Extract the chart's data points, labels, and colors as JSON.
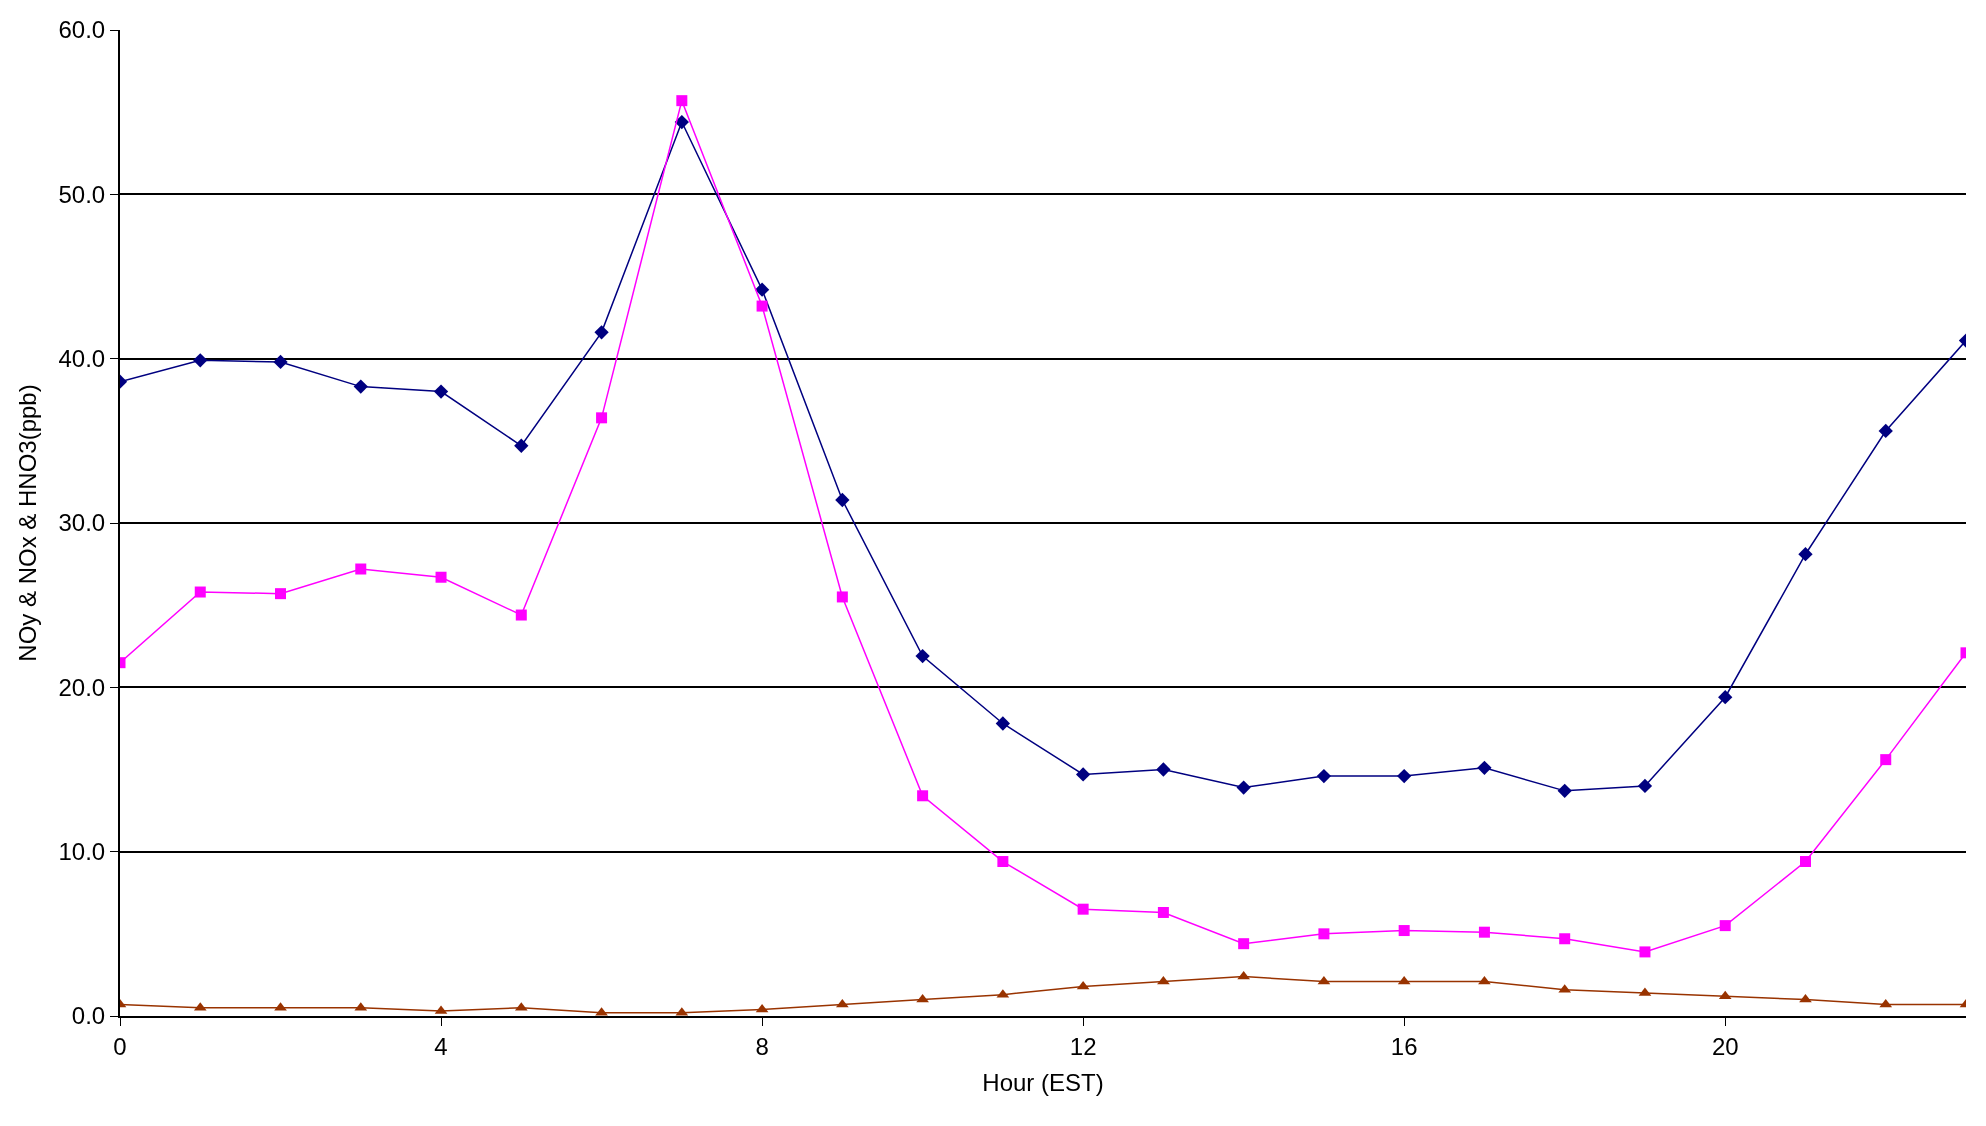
{
  "chart_data": {
    "type": "line",
    "xlabel": "Hour (EST)",
    "ylabel": "NOy & NOx & HNO3(ppb)",
    "x": [
      0,
      1,
      2,
      3,
      4,
      5,
      6,
      7,
      8,
      9,
      10,
      11,
      12,
      13,
      14,
      15,
      16,
      17,
      18,
      19,
      20,
      21,
      22,
      23
    ],
    "series": [
      {
        "color": "#000080",
        "marker": "diamond",
        "values": [
          38.6,
          39.9,
          39.8,
          38.3,
          38.0,
          34.7,
          41.6,
          54.4,
          44.2,
          31.4,
          21.9,
          17.8,
          14.7,
          15.0,
          13.9,
          14.6,
          14.6,
          15.1,
          13.7,
          14.0,
          19.4,
          28.1,
          35.6,
          41.1
        ]
      },
      {
        "color": "#ff00ff",
        "marker": "square",
        "values": [
          21.5,
          25.8,
          25.7,
          27.2,
          26.7,
          24.4,
          36.4,
          55.7,
          43.2,
          25.5,
          13.4,
          9.4,
          6.5,
          6.3,
          4.4,
          5.0,
          5.2,
          5.1,
          4.7,
          3.9,
          5.5,
          9.4,
          15.6,
          22.1
        ]
      },
      {
        "color": "#993300",
        "marker": "triangle",
        "values": [
          0.7,
          0.5,
          0.5,
          0.5,
          0.3,
          0.5,
          0.2,
          0.2,
          0.4,
          0.7,
          1.0,
          1.3,
          1.8,
          2.1,
          2.4,
          2.1,
          2.1,
          2.1,
          1.6,
          1.4,
          1.2,
          1.0,
          0.7,
          0.7
        ]
      }
    ],
    "xlim": [
      0,
      23
    ],
    "xticks": [
      0,
      4,
      8,
      12,
      16,
      20
    ],
    "ylim": [
      0,
      60
    ],
    "yticks": [
      {
        "value": 0,
        "label": "0.0"
      },
      {
        "value": 10,
        "label": "10.0"
      },
      {
        "value": 20,
        "label": "20.0"
      },
      {
        "value": 30,
        "label": "30.0"
      },
      {
        "value": 40,
        "label": "40.0"
      },
      {
        "value": 50,
        "label": "50.0"
      },
      {
        "value": 60,
        "label": "60.0"
      }
    ],
    "grid": "y",
    "line_style": "solid"
  }
}
